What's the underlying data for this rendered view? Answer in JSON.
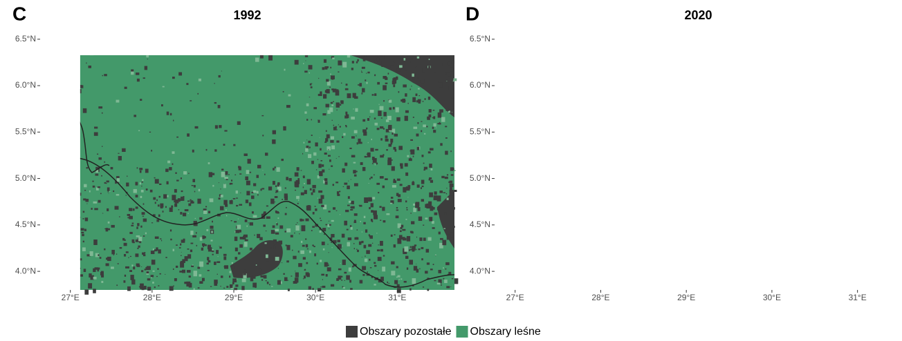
{
  "panels": [
    {
      "letter": "C",
      "title": "1992",
      "xlim": [
        26.63,
        31.7
      ],
      "ylim": [
        3.8,
        6.625
      ],
      "xticks": [
        {
          "value": 27,
          "label": "27°E"
        },
        {
          "value": 28,
          "label": "28°E"
        },
        {
          "value": 29,
          "label": "29°E"
        },
        {
          "value": 30,
          "label": "30°E"
        },
        {
          "value": 31,
          "label": "31°E"
        }
      ],
      "yticks": [
        {
          "value": 4.0,
          "label": "4.0°N"
        },
        {
          "value": 4.5,
          "label": "4.5°N"
        },
        {
          "value": 5.0,
          "label": "5.0°N"
        },
        {
          "value": 5.5,
          "label": "5.5°N"
        },
        {
          "value": 6.0,
          "label": "6.0°N"
        },
        {
          "value": 6.5,
          "label": "6.5°N"
        }
      ]
    },
    {
      "letter": "D",
      "title": "2020",
      "xlim": [
        26.76,
        31.52
      ],
      "ylim": [
        3.8,
        6.625
      ],
      "xticks": [
        {
          "value": 27,
          "label": "27°E"
        },
        {
          "value": 28,
          "label": "28°E"
        },
        {
          "value": 29,
          "label": "29°E"
        },
        {
          "value": 30,
          "label": "30°E"
        },
        {
          "value": 31,
          "label": "31°E"
        }
      ],
      "yticks": [
        {
          "value": 4.0,
          "label": "4.0°N"
        },
        {
          "value": 4.5,
          "label": "4.5°N"
        },
        {
          "value": 5.0,
          "label": "5.0°N"
        },
        {
          "value": 5.5,
          "label": "5.5°N"
        },
        {
          "value": 6.0,
          "label": "6.0°N"
        },
        {
          "value": 6.5,
          "label": "6.5°N"
        }
      ]
    }
  ],
  "legend": [
    {
      "name": "Obszary pozostałe",
      "color": "#3d3d3d"
    },
    {
      "name": "Obszary leśne",
      "color": "#43996a"
    }
  ]
}
